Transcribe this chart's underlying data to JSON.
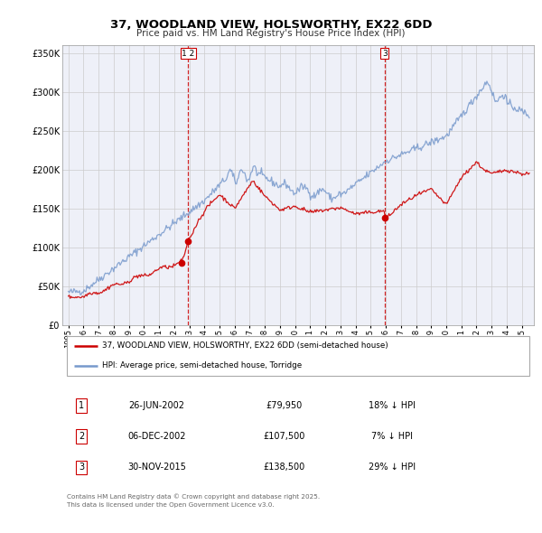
{
  "title": "37, WOODLAND VIEW, HOLSWORTHY, EX22 6DD",
  "subtitle": "Price paid vs. HM Land Registry's House Price Index (HPI)",
  "title_fontsize": 9.5,
  "subtitle_fontsize": 7.5,
  "bg_color": "#ffffff",
  "grid_color": "#cccccc",
  "plot_bg": "#eef0f8",
  "red_color": "#cc0000",
  "blue_color": "#7799cc",
  "legend_label_red": "37, WOODLAND VIEW, HOLSWORTHY, EX22 6DD (semi-detached house)",
  "legend_label_blue": "HPI: Average price, semi-detached house, Torridge",
  "vline_color": "#cc0000",
  "ylim": [
    0,
    360000
  ],
  "yticks": [
    0,
    50000,
    100000,
    150000,
    200000,
    250000,
    300000,
    350000
  ],
  "ytick_labels": [
    "£0",
    "£50K",
    "£100K",
    "£150K",
    "£200K",
    "£250K",
    "£300K",
    "£350K"
  ],
  "xlim_start": 1994.6,
  "xlim_end": 2025.8,
  "xtick_years": [
    1995,
    1996,
    1997,
    1998,
    1999,
    2000,
    2001,
    2002,
    2003,
    2004,
    2005,
    2006,
    2007,
    2008,
    2009,
    2010,
    2011,
    2012,
    2013,
    2014,
    2015,
    2016,
    2017,
    2018,
    2019,
    2020,
    2021,
    2022,
    2023,
    2024,
    2025
  ],
  "trans1_x": 2002.49,
  "trans1_y": 79950,
  "trans2_x": 2002.93,
  "trans2_y": 107500,
  "trans3_x": 2015.92,
  "trans3_y": 138500,
  "vline1_x": 2002.93,
  "vline2_x": 2015.92,
  "table_rows": [
    {
      "num": "1",
      "date": "26-JUN-2002",
      "price": "£79,950",
      "pct": "18% ↓ HPI"
    },
    {
      "num": "2",
      "date": "06-DEC-2002",
      "price": "£107,500",
      "pct": "7% ↓ HPI"
    },
    {
      "num": "3",
      "date": "30-NOV-2015",
      "price": "£138,500",
      "pct": "29% ↓ HPI"
    }
  ],
  "footer": "Contains HM Land Registry data © Crown copyright and database right 2025.\nThis data is licensed under the Open Government Licence v3.0."
}
